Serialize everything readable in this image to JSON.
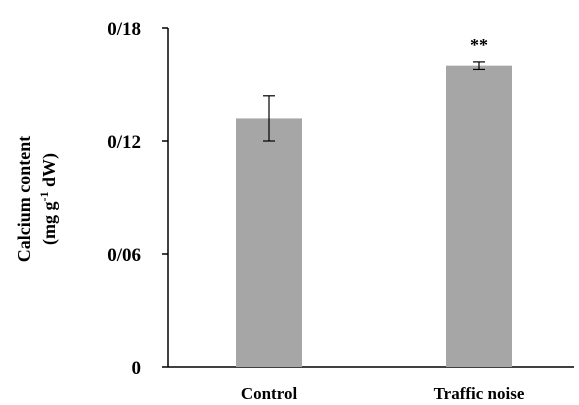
{
  "chart_data": {
    "type": "bar",
    "title": "",
    "xlabel": "",
    "ylabel": {
      "line1": "Calcium content",
      "line2_prefix": "(mg g",
      "line2_superscript": "-1",
      "line2_suffix": " dW)"
    },
    "categories": [
      "Control",
      "Traffic noise"
    ],
    "values": [
      0.132,
      0.16
    ],
    "error": [
      0.012,
      0.002
    ],
    "annotations": [
      "",
      "**"
    ],
    "ylim": [
      0,
      0.18
    ],
    "yticks": [
      0,
      0.06,
      0.12,
      0.18
    ],
    "ytick_labels": [
      "0",
      "0/06",
      "0/12",
      "0/18"
    ],
    "grid": false,
    "legend": "none",
    "colors": {
      "bar": "#a6a6a6",
      "axis": "#000000",
      "error": "#000000"
    }
  }
}
